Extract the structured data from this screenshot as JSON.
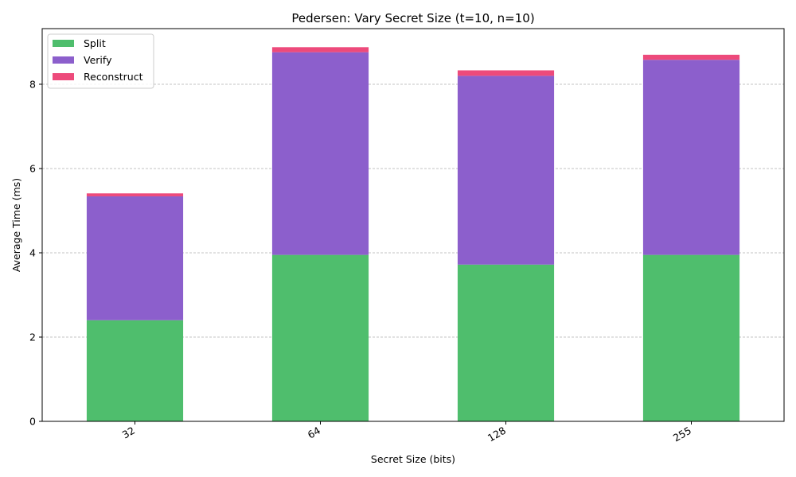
{
  "chart_data": {
    "type": "bar",
    "stacked": true,
    "title": "Pedersen: Vary Secret Size (t=10, n=10)",
    "xlabel": "Secret Size (bits)",
    "ylabel": "Average Time (ms)",
    "categories": [
      "32",
      "64",
      "128",
      "255"
    ],
    "series": [
      {
        "name": "Split",
        "color": "#4fbe6d",
        "values": [
          2.4,
          3.95,
          3.72,
          3.95
        ]
      },
      {
        "name": "Verify",
        "color": "#8c5fcc",
        "values": [
          2.94,
          4.81,
          4.48,
          4.63
        ]
      },
      {
        "name": "Reconstruct",
        "color": "#ed4a7b",
        "values": [
          0.07,
          0.12,
          0.13,
          0.12
        ]
      }
    ],
    "ylim": [
      0,
      9.32
    ],
    "yticks": [
      0,
      2,
      4,
      6,
      8
    ],
    "grid": "y-dashed",
    "legend": "top-left"
  }
}
